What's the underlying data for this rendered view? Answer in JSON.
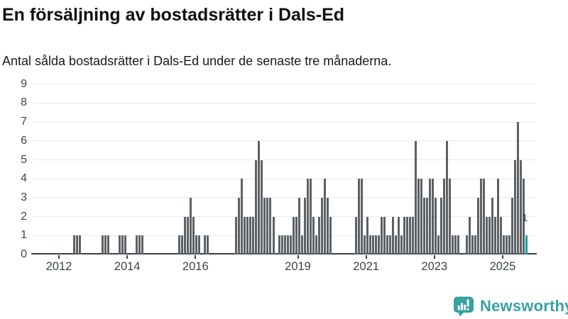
{
  "title": "En försäljning av bostadsrätter i Dals-Ed",
  "subtitle": "Antal sålda bostadsrätter i Dals-Ed under de senaste tre månaderna.",
  "brand": {
    "name": "Newsworthy"
  },
  "annotation": {
    "last_value_label": "1"
  },
  "colors": {
    "bar": "#5c6166",
    "highlight": "#0ba3a3",
    "grid": "#e9e9e9",
    "axis": "#3c4043",
    "tick_text": "#3c4347",
    "brand_teal": "#3aa0a2"
  },
  "chart_data": {
    "type": "bar",
    "title": "En försäljning av bostadsrätter i Dals-Ed",
    "subtitle": "Antal sålda bostadsrätter i Dals-Ed under de senaste tre månaderna.",
    "frequency": "monthly",
    "start": "2011-04",
    "end": "2025-09",
    "ylim": [
      0,
      9
    ],
    "y_ticks": [
      0,
      1,
      2,
      3,
      4,
      5,
      6,
      7,
      8,
      9
    ],
    "x_tick_labels": [
      "2012",
      "2014",
      "2016",
      "2019",
      "2021",
      "2023",
      "2025"
    ],
    "grid": true,
    "legend": "none",
    "highlight_last_bar": {
      "value": 1,
      "label": "1"
    },
    "values_by_year": {
      "2011": [
        0,
        0,
        0,
        0,
        0,
        0,
        0,
        0,
        0
      ],
      "2012": [
        0,
        0,
        0,
        0,
        0,
        1,
        1,
        1,
        0,
        0,
        0,
        0
      ],
      "2013": [
        0,
        0,
        0,
        1,
        1,
        1,
        0,
        0,
        0,
        1,
        1,
        1
      ],
      "2014": [
        0,
        0,
        0,
        1,
        1,
        1,
        0,
        0,
        0,
        0,
        0,
        0
      ],
      "2015": [
        0,
        0,
        0,
        0,
        0,
        0,
        1,
        1,
        2,
        2,
        3,
        2
      ],
      "2016": [
        1,
        1,
        0,
        1,
        1,
        0,
        0,
        0,
        0,
        0,
        0,
        0
      ],
      "2017": [
        0,
        0,
        2,
        3,
        4,
        2,
        2,
        2,
        2,
        5,
        6,
        5
      ],
      "2018": [
        3,
        3,
        3,
        2,
        0,
        1,
        1,
        1,
        1,
        1,
        2,
        2
      ],
      "2019": [
        3,
        1,
        3,
        4,
        4,
        2,
        1,
        2,
        3,
        4,
        3,
        2
      ],
      "2020": [
        0,
        0,
        0,
        0,
        0,
        0,
        0,
        0,
        2,
        4,
        4,
        1
      ],
      "2021": [
        2,
        1,
        1,
        1,
        1,
        2,
        2,
        1,
        1,
        2,
        1,
        2
      ],
      "2022": [
        1,
        2,
        2,
        2,
        2,
        6,
        4,
        4,
        3,
        3,
        4,
        4
      ],
      "2023": [
        3,
        1,
        3,
        4,
        6,
        4,
        1,
        1,
        1,
        0,
        0,
        1
      ],
      "2024": [
        2,
        1,
        1,
        3,
        4,
        4,
        2,
        2,
        3,
        2,
        4,
        2
      ],
      "2025": [
        1,
        1,
        1,
        3,
        5,
        7,
        5,
        4,
        1
      ]
    }
  }
}
